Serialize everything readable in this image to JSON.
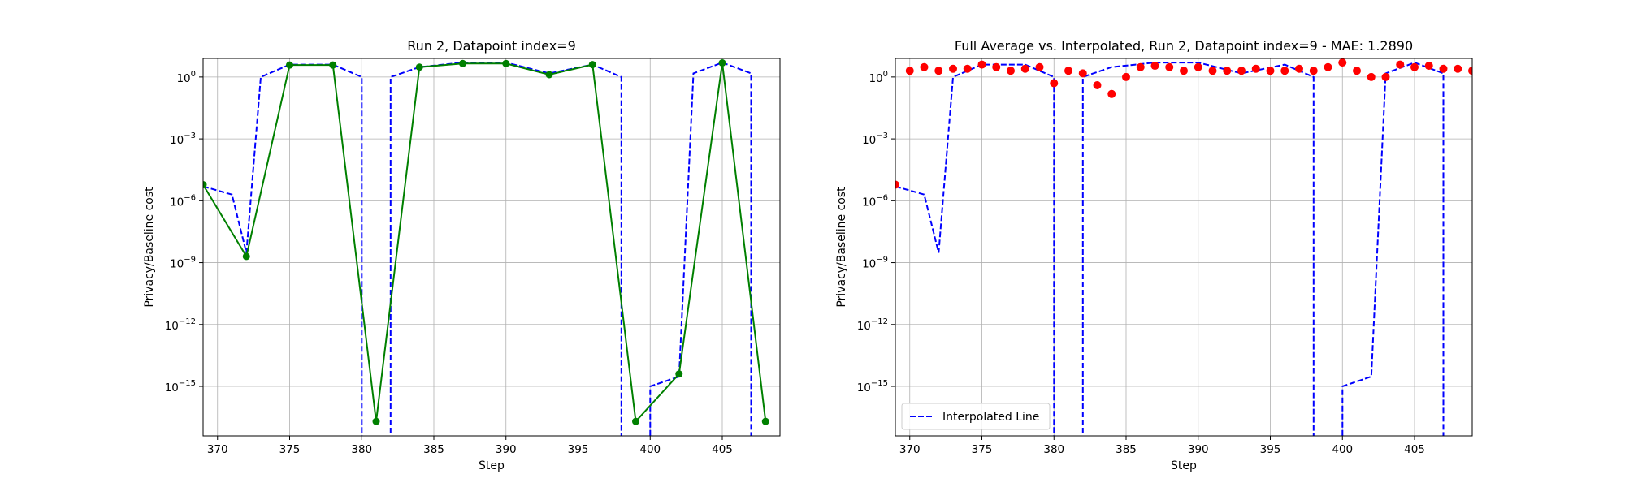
{
  "chart_data": [
    {
      "type": "line",
      "title": "Run 2, Datapoint index=9",
      "xlabel": "Step",
      "ylabel": "Privacy/Baseline cost",
      "xlim": [
        369,
        409
      ],
      "x_ticks": [
        370,
        375,
        380,
        385,
        390,
        395,
        400,
        405
      ],
      "y_scale": "log",
      "ylim_exp": [
        -17.4,
        0.9
      ],
      "y_ticks": [
        {
          "base": "10",
          "exp": "0",
          "value": 1
        },
        {
          "base": "10",
          "exp": "−3",
          "value": 0.001
        },
        {
          "base": "10",
          "exp": "−6",
          "value": 1e-06
        },
        {
          "base": "10",
          "exp": "−9",
          "value": 1e-09
        },
        {
          "base": "10",
          "exp": "−12",
          "value": 1e-12
        },
        {
          "base": "10",
          "exp": "−15",
          "value": 1e-15
        }
      ],
      "grid": true,
      "legend": null,
      "series": [
        {
          "style": "dashed",
          "color": "#0000ff",
          "points": [
            [
              369,
              5e-06
            ],
            [
              371,
              2e-06
            ],
            [
              372,
              3e-09
            ],
            [
              373,
              1
            ],
            [
              375,
              4
            ],
            [
              378,
              4
            ],
            [
              380,
              1
            ],
            [
              380,
              1e-20
            ],
            [
              382,
              1e-20
            ],
            [
              382,
              1
            ],
            [
              384,
              3
            ],
            [
              387,
              5
            ],
            [
              390,
              5
            ],
            [
              393,
              1.5
            ],
            [
              396,
              4
            ],
            [
              398,
              1
            ],
            [
              398,
              1e-20
            ],
            [
              400,
              1e-20
            ],
            [
              400,
              1e-15
            ],
            [
              402,
              3e-15
            ],
            [
              403,
              1.5
            ],
            [
              405,
              5
            ],
            [
              407,
              1.5
            ],
            [
              407,
              1e-20
            ],
            [
              409,
              1e-20
            ]
          ]
        },
        {
          "style": "solid-markers",
          "color": "#008000",
          "points": [
            [
              369,
              6e-06
            ],
            [
              372,
              2e-09
            ],
            [
              375,
              3.8
            ],
            [
              378,
              3.8
            ],
            [
              381,
              2e-17
            ],
            [
              384,
              3
            ],
            [
              387,
              4.5
            ],
            [
              390,
              4.5
            ],
            [
              393,
              1.3
            ],
            [
              396,
              4
            ],
            [
              399,
              2e-17
            ],
            [
              402,
              4e-15
            ],
            [
              405,
              4.8
            ],
            [
              408,
              2e-17
            ]
          ]
        }
      ]
    },
    {
      "type": "scatter",
      "title": "Full Average vs. Interpolated, Run 2, Datapoint index=9 - MAE: 1.2890",
      "xlabel": "Step",
      "ylabel": "Privacy/Baseline cost",
      "xlim": [
        369,
        409
      ],
      "x_ticks": [
        370,
        375,
        380,
        385,
        390,
        395,
        400,
        405
      ],
      "y_scale": "log",
      "ylim_exp": [
        -17.4,
        0.9
      ],
      "y_ticks": [
        {
          "base": "10",
          "exp": "0",
          "value": 1
        },
        {
          "base": "10",
          "exp": "−3",
          "value": 0.001
        },
        {
          "base": "10",
          "exp": "−6",
          "value": 1e-06
        },
        {
          "base": "10",
          "exp": "−9",
          "value": 1e-09
        },
        {
          "base": "10",
          "exp": "−12",
          "value": 1e-12
        },
        {
          "base": "10",
          "exp": "−15",
          "value": 1e-15
        }
      ],
      "grid": true,
      "legend": {
        "placement": "lower-left",
        "entries": [
          "Interpolated Line"
        ]
      },
      "series": [
        {
          "name": "Interpolated Line",
          "style": "dashed",
          "color": "#0000ff",
          "points": [
            [
              369,
              5e-06
            ],
            [
              371,
              2e-06
            ],
            [
              372,
              3e-09
            ],
            [
              373,
              1
            ],
            [
              375,
              4
            ],
            [
              378,
              4
            ],
            [
              380,
              1
            ],
            [
              380,
              1e-20
            ],
            [
              382,
              1e-20
            ],
            [
              382,
              1
            ],
            [
              384,
              3
            ],
            [
              387,
              5
            ],
            [
              390,
              5
            ],
            [
              393,
              1.5
            ],
            [
              396,
              4
            ],
            [
              398,
              1
            ],
            [
              398,
              1e-20
            ],
            [
              400,
              1e-20
            ],
            [
              400,
              1e-15
            ],
            [
              402,
              3e-15
            ],
            [
              403,
              1.5
            ],
            [
              405,
              5
            ],
            [
              407,
              1.5
            ],
            [
              407,
              1e-20
            ],
            [
              409,
              1e-20
            ]
          ]
        },
        {
          "style": "markers",
          "color": "#ff0000",
          "points": [
            [
              369,
              6e-06
            ],
            [
              370,
              2
            ],
            [
              371,
              3
            ],
            [
              372,
              2
            ],
            [
              373,
              2.5
            ],
            [
              374,
              2.5
            ],
            [
              375,
              4
            ],
            [
              376,
              3
            ],
            [
              377,
              2
            ],
            [
              378,
              2.5
            ],
            [
              379,
              3
            ],
            [
              380,
              0.5
            ],
            [
              381,
              2
            ],
            [
              382,
              1.5
            ],
            [
              383,
              0.4
            ],
            [
              384,
              0.15
            ],
            [
              385,
              1
            ],
            [
              386,
              3
            ],
            [
              387,
              3.5
            ],
            [
              388,
              3
            ],
            [
              389,
              2
            ],
            [
              390,
              3
            ],
            [
              391,
              2
            ],
            [
              392,
              2
            ],
            [
              393,
              2
            ],
            [
              394,
              2.5
            ],
            [
              395,
              2
            ],
            [
              396,
              2
            ],
            [
              397,
              2.5
            ],
            [
              398,
              2
            ],
            [
              399,
              3
            ],
            [
              400,
              5
            ],
            [
              401,
              2
            ],
            [
              402,
              1
            ],
            [
              403,
              1
            ],
            [
              404,
              4
            ],
            [
              405,
              3
            ],
            [
              406,
              3.5
            ],
            [
              407,
              2.5
            ],
            [
              408,
              2.5
            ],
            [
              409,
              2
            ]
          ]
        }
      ]
    }
  ]
}
